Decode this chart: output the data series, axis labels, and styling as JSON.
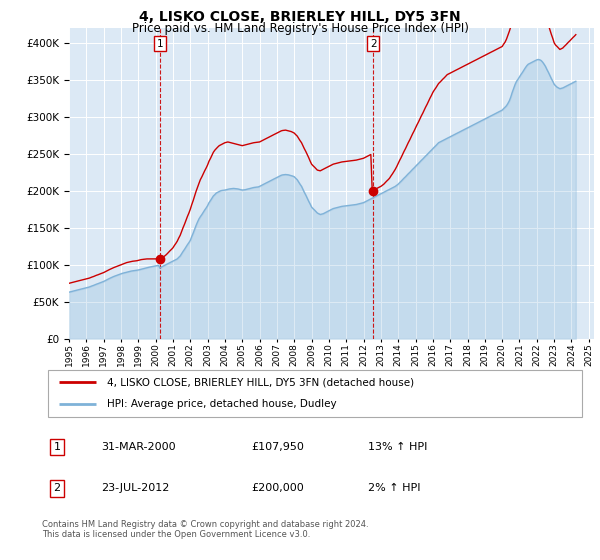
{
  "title": "4, LISKO CLOSE, BRIERLEY HILL, DY5 3FN",
  "subtitle": "Price paid vs. HM Land Registry's House Price Index (HPI)",
  "title_fontsize": 11,
  "subtitle_fontsize": 9,
  "plot_bg_color": "#dce9f5",
  "line_color_red": "#cc0000",
  "line_color_blue": "#7fb2d8",
  "sale1_year": 2000.25,
  "sale1_price": 107950,
  "sale2_year": 2012.55,
  "sale2_price": 200000,
  "sale1_date": "31-MAR-2000",
  "sale1_price_str": "£107,950",
  "sale1_hpi": "13% ↑ HPI",
  "sale2_date": "23-JUL-2012",
  "sale2_price_str": "£200,000",
  "sale2_hpi": "2% ↑ HPI",
  "legend_line1": "4, LISKO CLOSE, BRIERLEY HILL, DY5 3FN (detached house)",
  "legend_line2": "HPI: Average price, detached house, Dudley",
  "footer": "Contains HM Land Registry data © Crown copyright and database right 2024.\nThis data is licensed under the Open Government Licence v3.0.",
  "hpi_years": [
    1995.0,
    1995.08,
    1995.17,
    1995.25,
    1995.33,
    1995.42,
    1995.5,
    1995.58,
    1995.67,
    1995.75,
    1995.83,
    1995.92,
    1996.0,
    1996.08,
    1996.17,
    1996.25,
    1996.33,
    1996.42,
    1996.5,
    1996.58,
    1996.67,
    1996.75,
    1996.83,
    1996.92,
    1997.0,
    1997.08,
    1997.17,
    1997.25,
    1997.33,
    1997.42,
    1997.5,
    1997.58,
    1997.67,
    1997.75,
    1997.83,
    1997.92,
    1998.0,
    1998.08,
    1998.17,
    1998.25,
    1998.33,
    1998.42,
    1998.5,
    1998.58,
    1998.67,
    1998.75,
    1998.83,
    1998.92,
    1999.0,
    1999.08,
    1999.17,
    1999.25,
    1999.33,
    1999.42,
    1999.5,
    1999.58,
    1999.67,
    1999.75,
    1999.83,
    1999.92,
    2000.0,
    2000.08,
    2000.17,
    2000.25,
    2000.33,
    2000.42,
    2000.5,
    2000.58,
    2000.67,
    2000.75,
    2000.83,
    2000.92,
    2001.0,
    2001.08,
    2001.17,
    2001.25,
    2001.33,
    2001.42,
    2001.5,
    2001.58,
    2001.67,
    2001.75,
    2001.83,
    2001.92,
    2002.0,
    2002.08,
    2002.17,
    2002.25,
    2002.33,
    2002.42,
    2002.5,
    2002.58,
    2002.67,
    2002.75,
    2002.83,
    2002.92,
    2003.0,
    2003.08,
    2003.17,
    2003.25,
    2003.33,
    2003.42,
    2003.5,
    2003.58,
    2003.67,
    2003.75,
    2003.83,
    2003.92,
    2004.0,
    2004.08,
    2004.17,
    2004.25,
    2004.33,
    2004.42,
    2004.5,
    2004.58,
    2004.67,
    2004.75,
    2004.83,
    2004.92,
    2005.0,
    2005.08,
    2005.17,
    2005.25,
    2005.33,
    2005.42,
    2005.5,
    2005.58,
    2005.67,
    2005.75,
    2005.83,
    2005.92,
    2006.0,
    2006.08,
    2006.17,
    2006.25,
    2006.33,
    2006.42,
    2006.5,
    2006.58,
    2006.67,
    2006.75,
    2006.83,
    2006.92,
    2007.0,
    2007.08,
    2007.17,
    2007.25,
    2007.33,
    2007.42,
    2007.5,
    2007.58,
    2007.67,
    2007.75,
    2007.83,
    2007.92,
    2008.0,
    2008.08,
    2008.17,
    2008.25,
    2008.33,
    2008.42,
    2008.5,
    2008.58,
    2008.67,
    2008.75,
    2008.83,
    2008.92,
    2009.0,
    2009.08,
    2009.17,
    2009.25,
    2009.33,
    2009.42,
    2009.5,
    2009.58,
    2009.67,
    2009.75,
    2009.83,
    2009.92,
    2010.0,
    2010.08,
    2010.17,
    2010.25,
    2010.33,
    2010.42,
    2010.5,
    2010.58,
    2010.67,
    2010.75,
    2010.83,
    2010.92,
    2011.0,
    2011.08,
    2011.17,
    2011.25,
    2011.33,
    2011.42,
    2011.5,
    2011.58,
    2011.67,
    2011.75,
    2011.83,
    2011.92,
    2012.0,
    2012.08,
    2012.17,
    2012.25,
    2012.33,
    2012.42,
    2012.5,
    2012.58,
    2012.67,
    2012.75,
    2012.83,
    2012.92,
    2013.0,
    2013.08,
    2013.17,
    2013.25,
    2013.33,
    2013.42,
    2013.5,
    2013.58,
    2013.67,
    2013.75,
    2013.83,
    2013.92,
    2014.0,
    2014.08,
    2014.17,
    2014.25,
    2014.33,
    2014.42,
    2014.5,
    2014.58,
    2014.67,
    2014.75,
    2014.83,
    2014.92,
    2015.0,
    2015.08,
    2015.17,
    2015.25,
    2015.33,
    2015.42,
    2015.5,
    2015.58,
    2015.67,
    2015.75,
    2015.83,
    2015.92,
    2016.0,
    2016.08,
    2016.17,
    2016.25,
    2016.33,
    2016.42,
    2016.5,
    2016.58,
    2016.67,
    2016.75,
    2016.83,
    2016.92,
    2017.0,
    2017.08,
    2017.17,
    2017.25,
    2017.33,
    2017.42,
    2017.5,
    2017.58,
    2017.67,
    2017.75,
    2017.83,
    2017.92,
    2018.0,
    2018.08,
    2018.17,
    2018.25,
    2018.33,
    2018.42,
    2018.5,
    2018.58,
    2018.67,
    2018.75,
    2018.83,
    2018.92,
    2019.0,
    2019.08,
    2019.17,
    2019.25,
    2019.33,
    2019.42,
    2019.5,
    2019.58,
    2019.67,
    2019.75,
    2019.83,
    2019.92,
    2020.0,
    2020.08,
    2020.17,
    2020.25,
    2020.33,
    2020.42,
    2020.5,
    2020.58,
    2020.67,
    2020.75,
    2020.83,
    2020.92,
    2021.0,
    2021.08,
    2021.17,
    2021.25,
    2021.33,
    2021.42,
    2021.5,
    2021.58,
    2021.67,
    2021.75,
    2021.83,
    2021.92,
    2022.0,
    2022.08,
    2022.17,
    2022.25,
    2022.33,
    2022.42,
    2022.5,
    2022.58,
    2022.67,
    2022.75,
    2022.83,
    2022.92,
    2023.0,
    2023.08,
    2023.17,
    2023.25,
    2023.33,
    2023.42,
    2023.5,
    2023.58,
    2023.67,
    2023.75,
    2023.83,
    2023.92,
    2024.0,
    2024.08,
    2024.17,
    2024.25
  ],
  "hpi_values": [
    63000,
    63500,
    64000,
    64500,
    65000,
    65500,
    66000,
    66500,
    67000,
    67500,
    68000,
    68500,
    69000,
    69500,
    70000,
    70800,
    71500,
    72200,
    73000,
    73800,
    74500,
    75300,
    76000,
    76800,
    77500,
    78500,
    79500,
    80500,
    81500,
    82500,
    83500,
    84200,
    85000,
    85800,
    86500,
    87200,
    88000,
    88500,
    89000,
    89500,
    90000,
    90500,
    91000,
    91500,
    91800,
    92000,
    92200,
    92500,
    93000,
    93500,
    94000,
    94500,
    95000,
    95500,
    96000,
    96500,
    97000,
    97500,
    97800,
    98200,
    98500,
    98800,
    99200,
    95500,
    97000,
    98000,
    99000,
    100000,
    101000,
    102000,
    103000,
    104000,
    105000,
    106000,
    107000,
    108000,
    110000,
    112000,
    115000,
    118000,
    121000,
    124000,
    127000,
    130000,
    133000,
    138000,
    143000,
    148000,
    153000,
    158000,
    162000,
    165000,
    168000,
    171000,
    174000,
    177000,
    180000,
    184000,
    187000,
    190000,
    193000,
    195000,
    197000,
    198000,
    199000,
    200000,
    200500,
    200800,
    201000,
    201500,
    202000,
    202500,
    202800,
    203000,
    203200,
    203000,
    202800,
    202500,
    202000,
    201500,
    201000,
    201200,
    201500,
    202000,
    202500,
    203000,
    203500,
    204000,
    204500,
    204800,
    205000,
    205200,
    206000,
    207000,
    208000,
    209000,
    210000,
    211000,
    212000,
    213000,
    214000,
    215000,
    216000,
    217000,
    218000,
    219000,
    220000,
    221000,
    221500,
    221800,
    222000,
    221800,
    221500,
    221000,
    220500,
    219800,
    219000,
    217000,
    215000,
    212000,
    209000,
    206000,
    202000,
    198000,
    194000,
    190000,
    186000,
    182000,
    178000,
    176000,
    174000,
    172000,
    170000,
    169000,
    168000,
    168500,
    169000,
    170000,
    171000,
    172000,
    173000,
    174000,
    175000,
    176000,
    176500,
    177000,
    177500,
    178000,
    178500,
    179000,
    179200,
    179500,
    179800,
    180000,
    180200,
    180500,
    180800,
    181000,
    181200,
    181500,
    182000,
    182500,
    183000,
    183500,
    184000,
    185000,
    186000,
    187000,
    188000,
    189000,
    190000,
    191000,
    192000,
    193000,
    194000,
    195000,
    196000,
    197000,
    198000,
    199000,
    200000,
    201000,
    202000,
    203000,
    204000,
    205000,
    206000,
    207500,
    209000,
    211000,
    213000,
    215000,
    217000,
    219000,
    221000,
    223000,
    225000,
    227000,
    229000,
    231000,
    233000,
    235000,
    237000,
    239000,
    241000,
    243000,
    245000,
    247000,
    249000,
    251000,
    253000,
    255000,
    257000,
    259000,
    261000,
    263000,
    265000,
    266000,
    267000,
    268000,
    269000,
    270000,
    271000,
    272000,
    273000,
    274000,
    275000,
    276000,
    277000,
    278000,
    279000,
    280000,
    281000,
    282000,
    283000,
    284000,
    285000,
    286000,
    287000,
    288000,
    289000,
    290000,
    291000,
    292000,
    293000,
    294000,
    295000,
    296000,
    297000,
    298000,
    299000,
    300000,
    301000,
    302000,
    303000,
    304000,
    305000,
    306000,
    307000,
    308000,
    309000,
    311000,
    313000,
    315000,
    318000,
    322000,
    327000,
    333000,
    339000,
    344000,
    348000,
    351000,
    354000,
    357000,
    360000,
    363000,
    366000,
    369000,
    371000,
    372000,
    373000,
    374000,
    375000,
    376000,
    377000,
    377500,
    377000,
    376000,
    374000,
    371000,
    368000,
    364000,
    360000,
    356000,
    352000,
    348000,
    344000,
    342000,
    340000,
    339000,
    338000,
    338500,
    339000,
    340000,
    341000,
    342000,
    343000,
    344000,
    345000,
    346000,
    347000,
    348000
  ],
  "red_years": [
    1995.0,
    1995.08,
    1995.17,
    1995.25,
    1995.33,
    1995.42,
    1995.5,
    1995.58,
    1995.67,
    1995.75,
    1995.83,
    1995.92,
    1996.0,
    1996.08,
    1996.17,
    1996.25,
    1996.33,
    1996.42,
    1996.5,
    1996.58,
    1996.67,
    1996.75,
    1996.83,
    1996.92,
    1997.0,
    1997.08,
    1997.17,
    1997.25,
    1997.33,
    1997.42,
    1997.5,
    1997.58,
    1997.67,
    1997.75,
    1997.83,
    1997.92,
    1998.0,
    1998.08,
    1998.17,
    1998.25,
    1998.33,
    1998.42,
    1998.5,
    1998.58,
    1998.67,
    1998.75,
    1998.83,
    1998.92,
    1999.0,
    1999.08,
    1999.17,
    1999.25,
    1999.33,
    1999.42,
    1999.5,
    1999.58,
    1999.67,
    1999.75,
    1999.83,
    1999.92,
    2000.0,
    2000.08,
    2000.17,
    2000.25,
    2000.33,
    2000.42,
    2000.5,
    2000.58,
    2000.67,
    2000.75,
    2000.83,
    2000.92,
    2001.0,
    2001.08,
    2001.17,
    2001.25,
    2001.33,
    2001.42,
    2001.5,
    2001.58,
    2001.67,
    2001.75,
    2001.83,
    2001.92,
    2002.0,
    2002.08,
    2002.17,
    2002.25,
    2002.33,
    2002.42,
    2002.5,
    2002.58,
    2002.67,
    2002.75,
    2002.83,
    2002.92,
    2003.0,
    2003.08,
    2003.17,
    2003.25,
    2003.33,
    2003.42,
    2003.5,
    2003.58,
    2003.67,
    2003.75,
    2003.83,
    2003.92,
    2004.0,
    2004.08,
    2004.17,
    2004.25,
    2004.33,
    2004.42,
    2004.5,
    2004.58,
    2004.67,
    2004.75,
    2004.83,
    2004.92,
    2005.0,
    2005.08,
    2005.17,
    2005.25,
    2005.33,
    2005.42,
    2005.5,
    2005.58,
    2005.67,
    2005.75,
    2005.83,
    2005.92,
    2006.0,
    2006.08,
    2006.17,
    2006.25,
    2006.33,
    2006.42,
    2006.5,
    2006.58,
    2006.67,
    2006.75,
    2006.83,
    2006.92,
    2007.0,
    2007.08,
    2007.17,
    2007.25,
    2007.33,
    2007.42,
    2007.5,
    2007.58,
    2007.67,
    2007.75,
    2007.83,
    2007.92,
    2008.0,
    2008.08,
    2008.17,
    2008.25,
    2008.33,
    2008.42,
    2008.5,
    2008.58,
    2008.67,
    2008.75,
    2008.83,
    2008.92,
    2009.0,
    2009.08,
    2009.17,
    2009.25,
    2009.33,
    2009.42,
    2009.5,
    2009.58,
    2009.67,
    2009.75,
    2009.83,
    2009.92,
    2010.0,
    2010.08,
    2010.17,
    2010.25,
    2010.33,
    2010.42,
    2010.5,
    2010.58,
    2010.67,
    2010.75,
    2010.83,
    2010.92,
    2011.0,
    2011.08,
    2011.17,
    2011.25,
    2011.33,
    2011.42,
    2011.5,
    2011.58,
    2011.67,
    2011.75,
    2011.83,
    2011.92,
    2012.0,
    2012.08,
    2012.17,
    2012.25,
    2012.33,
    2012.42,
    2012.5,
    2012.58,
    2012.67,
    2012.75,
    2012.83,
    2012.92,
    2013.0,
    2013.08,
    2013.17,
    2013.25,
    2013.33,
    2013.42,
    2013.5,
    2013.58,
    2013.67,
    2013.75,
    2013.83,
    2013.92,
    2014.0,
    2014.08,
    2014.17,
    2014.25,
    2014.33,
    2014.42,
    2014.5,
    2014.58,
    2014.67,
    2014.75,
    2014.83,
    2014.92,
    2015.0,
    2015.08,
    2015.17,
    2015.25,
    2015.33,
    2015.42,
    2015.5,
    2015.58,
    2015.67,
    2015.75,
    2015.83,
    2015.92,
    2016.0,
    2016.08,
    2016.17,
    2016.25,
    2016.33,
    2016.42,
    2016.5,
    2016.58,
    2016.67,
    2016.75,
    2016.83,
    2016.92,
    2017.0,
    2017.08,
    2017.17,
    2017.25,
    2017.33,
    2017.42,
    2017.5,
    2017.58,
    2017.67,
    2017.75,
    2017.83,
    2017.92,
    2018.0,
    2018.08,
    2018.17,
    2018.25,
    2018.33,
    2018.42,
    2018.5,
    2018.58,
    2018.67,
    2018.75,
    2018.83,
    2018.92,
    2019.0,
    2019.08,
    2019.17,
    2019.25,
    2019.33,
    2019.42,
    2019.5,
    2019.58,
    2019.67,
    2019.75,
    2019.83,
    2019.92,
    2020.0,
    2020.08,
    2020.17,
    2020.25,
    2020.33,
    2020.42,
    2020.5,
    2020.58,
    2020.67,
    2020.75,
    2020.83,
    2020.92,
    2021.0,
    2021.08,
    2021.17,
    2021.25,
    2021.33,
    2021.42,
    2021.5,
    2021.58,
    2021.67,
    2021.75,
    2021.83,
    2021.92,
    2022.0,
    2022.08,
    2022.17,
    2022.25,
    2022.33,
    2022.42,
    2022.5,
    2022.58,
    2022.67,
    2022.75,
    2022.83,
    2022.92,
    2023.0,
    2023.08,
    2023.17,
    2023.25,
    2023.33,
    2023.42,
    2023.5,
    2023.58,
    2023.67,
    2023.75,
    2023.83,
    2023.92,
    2024.0,
    2024.08,
    2024.17,
    2024.25
  ],
  "red_values": [
    75000,
    75500,
    76000,
    76500,
    77000,
    77500,
    78000,
    78500,
    79000,
    79500,
    80000,
    80500,
    81000,
    81500,
    82000,
    82800,
    83500,
    84200,
    85000,
    85800,
    86500,
    87300,
    88000,
    88800,
    89500,
    90500,
    91500,
    92500,
    93500,
    94500,
    95500,
    96200,
    97000,
    97800,
    98500,
    99200,
    100000,
    100800,
    101500,
    102200,
    103000,
    103500,
    104000,
    104500,
    104800,
    105000,
    105200,
    105500,
    106000,
    106500,
    107000,
    107200,
    107500,
    107800,
    107950,
    107950,
    107950,
    107950,
    107950,
    107950,
    107950,
    108000,
    108500,
    107950,
    109000,
    110000,
    111500,
    113000,
    115000,
    117000,
    119000,
    121000,
    123000,
    126000,
    129000,
    132000,
    136000,
    140000,
    145000,
    150000,
    155000,
    160000,
    165000,
    170000,
    175000,
    181000,
    187000,
    193000,
    199000,
    205000,
    210000,
    215000,
    219000,
    223000,
    227000,
    231000,
    235000,
    240000,
    244000,
    248000,
    252000,
    255000,
    257000,
    259000,
    261000,
    262000,
    263000,
    264000,
    265000,
    265500,
    266000,
    265500,
    265000,
    264500,
    264000,
    263500,
    263000,
    262500,
    262000,
    261500,
    261000,
    261500,
    262000,
    262500,
    263000,
    263500,
    264000,
    264500,
    265000,
    265200,
    265500,
    265800,
    266000,
    267000,
    268000,
    269000,
    270000,
    271000,
    272000,
    273000,
    274000,
    275000,
    276000,
    277000,
    278000,
    279000,
    280000,
    281000,
    281500,
    281800,
    282000,
    281500,
    281000,
    280500,
    280000,
    279000,
    278000,
    276000,
    274000,
    271000,
    268000,
    265000,
    261000,
    257000,
    253000,
    249000,
    245000,
    240000,
    236000,
    234000,
    232000,
    230000,
    228000,
    227500,
    227000,
    228000,
    229000,
    230000,
    231000,
    232000,
    233000,
    234000,
    235000,
    236000,
    236500,
    237000,
    237500,
    238000,
    238500,
    239000,
    239200,
    239500,
    239800,
    240000,
    240200,
    240500,
    240800,
    241000,
    241200,
    241500,
    242000,
    242500,
    243000,
    243500,
    244000,
    245000,
    246000,
    247000,
    248000,
    249000,
    200000,
    201000,
    202000,
    203000,
    204000,
    205000,
    206000,
    207500,
    209000,
    211000,
    213000,
    215000,
    217000,
    220000,
    223000,
    226000,
    229000,
    233000,
    237000,
    241000,
    245000,
    249000,
    253000,
    257000,
    261000,
    265000,
    269000,
    273000,
    277000,
    281000,
    285000,
    289000,
    293000,
    297000,
    301000,
    305000,
    309000,
    313000,
    317000,
    321000,
    325000,
    329000,
    333000,
    336000,
    339000,
    342000,
    345000,
    347000,
    349000,
    351000,
    353000,
    355000,
    357000,
    358000,
    359000,
    360000,
    361000,
    362000,
    363000,
    364000,
    365000,
    366000,
    367000,
    368000,
    369000,
    370000,
    371000,
    372000,
    373000,
    374000,
    375000,
    376000,
    377000,
    378000,
    379000,
    380000,
    381000,
    382000,
    383000,
    384000,
    385000,
    386000,
    387000,
    388000,
    389000,
    390000,
    391000,
    392000,
    393000,
    394000,
    395000,
    398000,
    401000,
    405000,
    410000,
    416000,
    422000,
    428000,
    433000,
    437000,
    440000,
    442000,
    444000,
    446000,
    448000,
    450000,
    452000,
    454000,
    455000,
    455500,
    456000,
    456500,
    457000,
    456500,
    456000,
    455000,
    453000,
    450000,
    446000,
    441000,
    436000,
    430000,
    424000,
    418000,
    412000,
    406000,
    400000,
    397000,
    395000,
    393000,
    391000,
    392000,
    393000,
    395000,
    397000,
    399000,
    401000,
    403000,
    405000,
    407000,
    409000,
    411000
  ]
}
